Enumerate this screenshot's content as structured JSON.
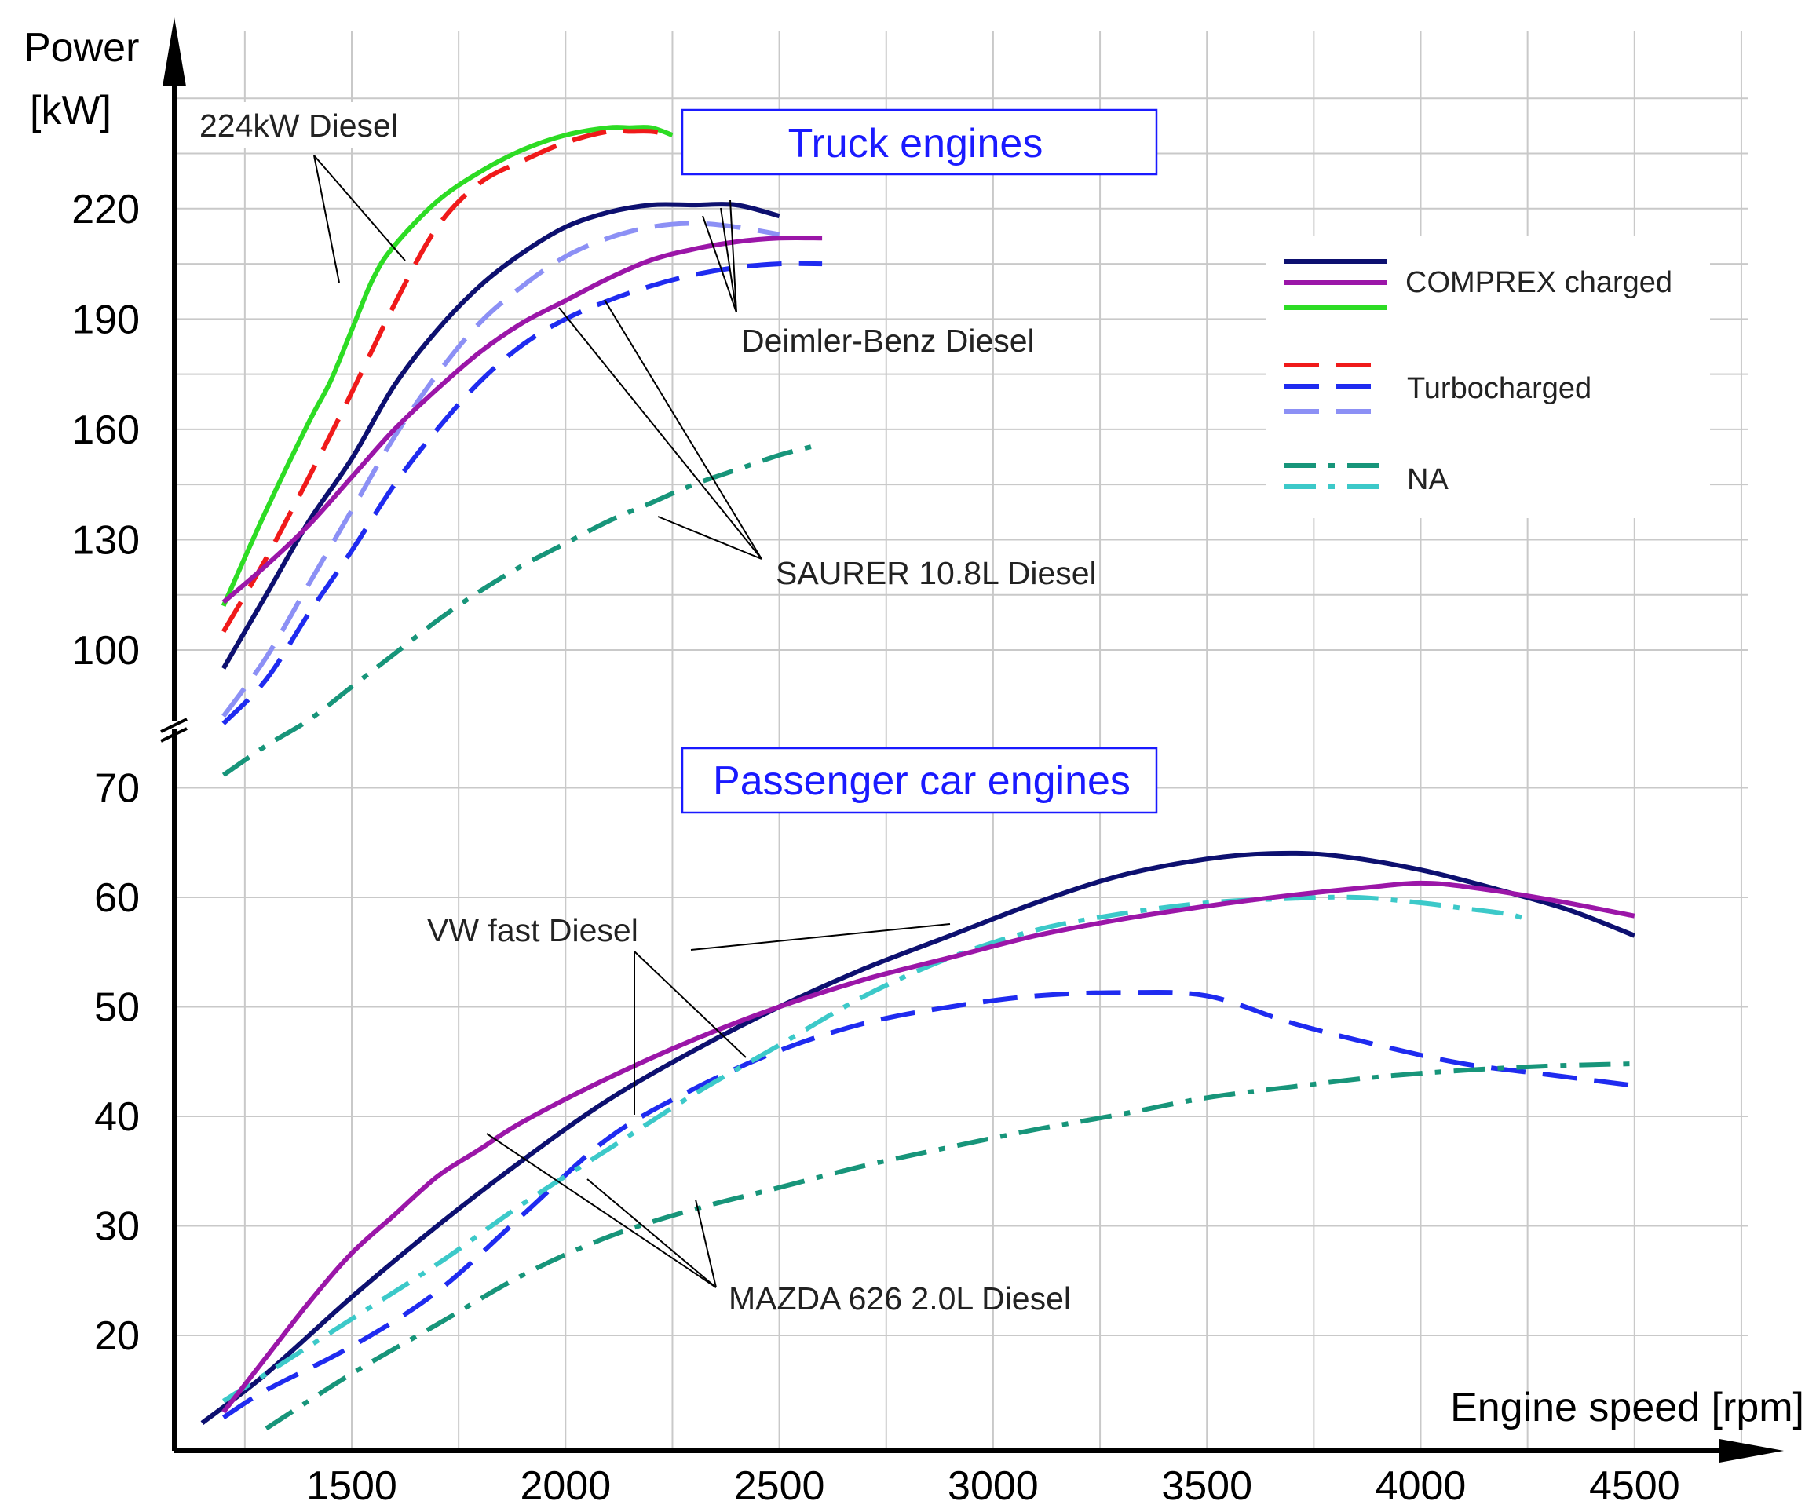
{
  "chart_data": {
    "type": "line",
    "title": "",
    "xlabel": "Engine speed [rpm]",
    "ylabel_line1": "Power",
    "ylabel_line2": "[kW]",
    "x_ticks": [
      "1500",
      "2000",
      "2500",
      "3000",
      "3500",
      "4000",
      "4500"
    ],
    "y_ticks_upper": [
      "100",
      "130",
      "160",
      "190",
      "220"
    ],
    "y_ticks_lower": [
      "20",
      "30",
      "40",
      "50",
      "60",
      "70"
    ],
    "xlim": [
      1150,
      4750
    ],
    "axis_break": "y-axis between 70 kW and 100 kW",
    "sections": {
      "truck": "Truck engines",
      "car": "Passenger car engines"
    },
    "annotations": {
      "diesel224": "224kW Diesel",
      "daimler": "Deimler-Benz Diesel",
      "saurer": "SAURER 10.8L Diesel",
      "vw": "VW fast Diesel",
      "mazda": "MAZDA 626 2.0L Diesel"
    },
    "legend": [
      {
        "label": "COMPREX charged",
        "style": "solid",
        "colors": [
          "#0d1070",
          "#9b16a8",
          "#2ddc24"
        ]
      },
      {
        "label": "Turbocharged",
        "style": "dashed",
        "colors": [
          "#f01a1a",
          "#1f2bf0",
          "#8c90f5"
        ]
      },
      {
        "label": "NA",
        "style": "dashdot",
        "colors": [
          "#17957a",
          "#3cc9c9"
        ]
      }
    ],
    "series": [
      {
        "name": "224kW Diesel COMPREX charged",
        "group": "truck",
        "style": "solid",
        "color": "#2ddc24",
        "x": [
          1200,
          1300,
          1400,
          1450,
          1500,
          1550,
          1600,
          1700,
          1800,
          1900,
          2000,
          2100,
          2150,
          2200,
          2250
        ],
        "y": [
          112,
          138,
          162,
          173,
          187,
          201,
          210,
          222,
          230,
          236,
          240,
          242,
          242,
          242,
          240
        ]
      },
      {
        "name": "224kW Diesel Turbocharged",
        "group": "truck",
        "style": "dashed",
        "color": "#f01a1a",
        "x": [
          1200,
          1300,
          1400,
          1500,
          1600,
          1700,
          1800,
          1900,
          2000,
          2100,
          2150,
          2200,
          2250
        ],
        "y": [
          105,
          125,
          147,
          170,
          194,
          215,
          227,
          233,
          238,
          241,
          241,
          241,
          240
        ]
      },
      {
        "name": "Deimler-Benz Diesel COMPREX charged",
        "group": "truck",
        "style": "solid",
        "color": "#0d1070",
        "x": [
          1200,
          1300,
          1400,
          1500,
          1600,
          1700,
          1800,
          1900,
          2000,
          2100,
          2200,
          2300,
          2400,
          2500
        ],
        "y": [
          95,
          115,
          135,
          152,
          172,
          187,
          199,
          208,
          215,
          219,
          221,
          221,
          221,
          218
        ]
      },
      {
        "name": "Deimler-Benz Diesel Turbocharged",
        "group": "truck",
        "style": "dashed",
        "color": "#8c90f5",
        "x": [
          1200,
          1300,
          1400,
          1500,
          1600,
          1700,
          1800,
          1900,
          2000,
          2100,
          2200,
          2300,
          2400,
          2500
        ],
        "y": [
          82,
          98,
          118,
          138,
          158,
          175,
          189,
          199,
          207,
          212,
          215,
          216,
          215,
          213
        ]
      },
      {
        "name": "SAURER 10.8L Diesel COMPREX charged",
        "group": "truck",
        "style": "solid",
        "color": "#9b16a8",
        "x": [
          1200,
          1300,
          1400,
          1500,
          1600,
          1700,
          1800,
          1900,
          2000,
          2100,
          2200,
          2300,
          2400,
          2500,
          2600
        ],
        "y": [
          113,
          123,
          134,
          147,
          160,
          171,
          181,
          189,
          195,
          201,
          206,
          209,
          211,
          212,
          212
        ]
      },
      {
        "name": "SAURER 10.8L Diesel Turbocharged",
        "group": "truck",
        "style": "dashed",
        "color": "#1f2bf0",
        "x": [
          1200,
          1300,
          1400,
          1500,
          1600,
          1700,
          1800,
          1900,
          2000,
          2100,
          2200,
          2300,
          2400,
          2500,
          2600
        ],
        "y": [
          80,
          92,
          110,
          127,
          145,
          160,
          173,
          183,
          190,
          195,
          199,
          202,
          204,
          205,
          205
        ]
      },
      {
        "name": "SAURER 10.8L Diesel NA",
        "group": "truck",
        "style": "dashdot",
        "color": "#17957a",
        "x": [
          1200,
          1300,
          1400,
          1500,
          1600,
          1700,
          1800,
          1900,
          2000,
          2100,
          2200,
          2300,
          2400,
          2500,
          2600
        ],
        "y": [
          66,
          74,
          81,
          90,
          99,
          108,
          116,
          123,
          129,
          135,
          140,
          145,
          149,
          153,
          156
        ]
      },
      {
        "name": "VW fast Diesel COMPREX charged",
        "group": "car",
        "style": "solid",
        "color": "#0d1070",
        "x": [
          1150,
          1300,
          1500,
          1700,
          1900,
          2100,
          2300,
          2500,
          2700,
          2900,
          3100,
          3300,
          3500,
          3650,
          3800,
          4000,
          4200,
          4350,
          4500
        ],
        "y": [
          12,
          16.5,
          23.5,
          30,
          36,
          41.5,
          46,
          50,
          53.5,
          56.5,
          59.5,
          62,
          63.5,
          64,
          63.8,
          62.5,
          60.5,
          58.8,
          56.5
        ]
      },
      {
        "name": "VW fast Diesel Turbocharged",
        "group": "car",
        "style": "dashed",
        "color": "#1f2bf0",
        "x": [
          1200,
          1300,
          1500,
          1700,
          1900,
          2100,
          2300,
          2500,
          2700,
          2900,
          3100,
          3300,
          3500,
          3700,
          3900,
          4100,
          4300,
          4500
        ],
        "y": [
          12.5,
          15,
          19,
          24,
          31,
          38,
          42.5,
          46,
          48.5,
          50,
          51,
          51.3,
          51,
          48.5,
          46.5,
          44.8,
          43.8,
          42.8
        ]
      },
      {
        "name": "VW fast Diesel NA",
        "group": "car",
        "style": "dashdot",
        "color": "#3cc9c9",
        "x": [
          1200,
          1300,
          1500,
          1700,
          1900,
          2100,
          2300,
          2500,
          2700,
          2900,
          3100,
          3300,
          3500,
          3700,
          3850,
          4000,
          4100,
          4200,
          4250
        ],
        "y": [
          14,
          16.5,
          21.5,
          26.5,
          32,
          37,
          42,
          46.5,
          51,
          54.5,
          57,
          58.5,
          59.5,
          59.9,
          60,
          59.5,
          59,
          58.5,
          58
        ]
      },
      {
        "name": "MAZDA 626 2.0L Diesel COMPREX charged",
        "group": "car",
        "style": "solid",
        "color": "#9b16a8",
        "x": [
          1200,
          1300,
          1400,
          1500,
          1600,
          1700,
          1800,
          1900,
          2100,
          2300,
          2500,
          2700,
          2900,
          3100,
          3300,
          3500,
          3700,
          3900,
          4000,
          4100,
          4300,
          4500
        ],
        "y": [
          13,
          18,
          23,
          27.5,
          31,
          34.5,
          37,
          39.5,
          43.5,
          47,
          50,
          52.5,
          54.5,
          56.5,
          58,
          59.2,
          60.2,
          61,
          61.3,
          61,
          59.8,
          58.3
        ]
      },
      {
        "name": "MAZDA 626 2.0L Diesel NA",
        "group": "car",
        "style": "dashdot",
        "color": "#17957a",
        "x": [
          1300,
          1500,
          1700,
          1900,
          2100,
          2300,
          2500,
          2700,
          2900,
          3100,
          3300,
          3500,
          3700,
          3900,
          4100,
          4300,
          4500
        ],
        "y": [
          11.5,
          16.5,
          21,
          25.5,
          29,
          31.5,
          33.5,
          35.5,
          37.2,
          38.8,
          40.2,
          41.7,
          42.7,
          43.6,
          44.2,
          44.6,
          44.8
        ]
      }
    ]
  }
}
